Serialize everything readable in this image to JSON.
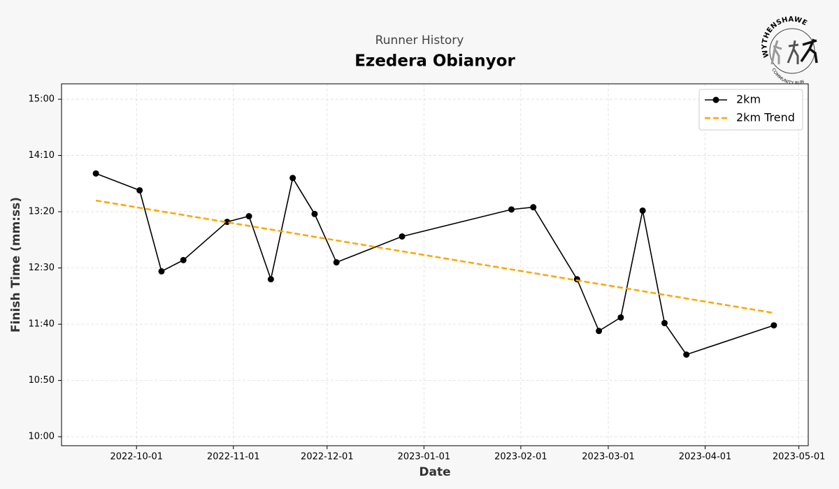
{
  "chart_data": {
    "type": "line",
    "subtitle": "Runner History",
    "title": "Ezedera Obianyor",
    "x_label": "Date",
    "y_label": "Finish Time (mm:ss)",
    "x": [
      "2022-09-18",
      "2022-10-02",
      "2022-10-09",
      "2022-10-16",
      "2022-10-30",
      "2022-11-06",
      "2022-11-13",
      "2022-11-20",
      "2022-11-27",
      "2022-12-04",
      "2022-12-25",
      "2023-01-29",
      "2023-02-05",
      "2023-02-19",
      "2023-02-26",
      "2023-03-05",
      "2023-03-12",
      "2023-03-19",
      "2023-03-26",
      "2023-04-23"
    ],
    "series": [
      {
        "name": "2km",
        "color": "#000000",
        "linestyle": "solid",
        "marker": "o",
        "values": [
          834,
          819,
          747,
          757,
          791,
          796,
          740,
          830,
          798,
          755,
          778,
          802,
          804,
          740,
          694,
          706,
          801,
          701,
          673,
          699
        ]
      },
      {
        "name": "2km Trend",
        "color": "#ffa500",
        "linestyle": "dashed",
        "marker": "none",
        "values": [
          810,
          803.5,
          800.3,
          797.1,
          790.6,
          787.4,
          784.2,
          781.0,
          777.7,
          774.5,
          764.8,
          748.7,
          745.5,
          739.0,
          735.8,
          732.6,
          729.4,
          726.1,
          722.9,
          710
        ]
      }
    ],
    "xlim": [
      "2022-09-07",
      "2023-05-04"
    ],
    "xticks": [
      "2022-10-01",
      "2022-11-01",
      "2022-12-01",
      "2023-01-01",
      "2023-02-01",
      "2023-03-01",
      "2023-04-01",
      "2023-05-01"
    ],
    "ylim": [
      592,
      913.7
    ],
    "yticks": [
      {
        "value": 600,
        "label": "10:00"
      },
      {
        "value": 650,
        "label": "10:50"
      },
      {
        "value": 700,
        "label": "11:40"
      },
      {
        "value": 750,
        "label": "12:30"
      },
      {
        "value": 800,
        "label": "13:20"
      },
      {
        "value": 850,
        "label": "14:10"
      },
      {
        "value": 900,
        "label": "15:00"
      }
    ],
    "grid": true,
    "legend": "upper right"
  },
  "logo": {
    "top": "WYTHENSHAWE",
    "bottom": "COMMUNITY RUN"
  }
}
